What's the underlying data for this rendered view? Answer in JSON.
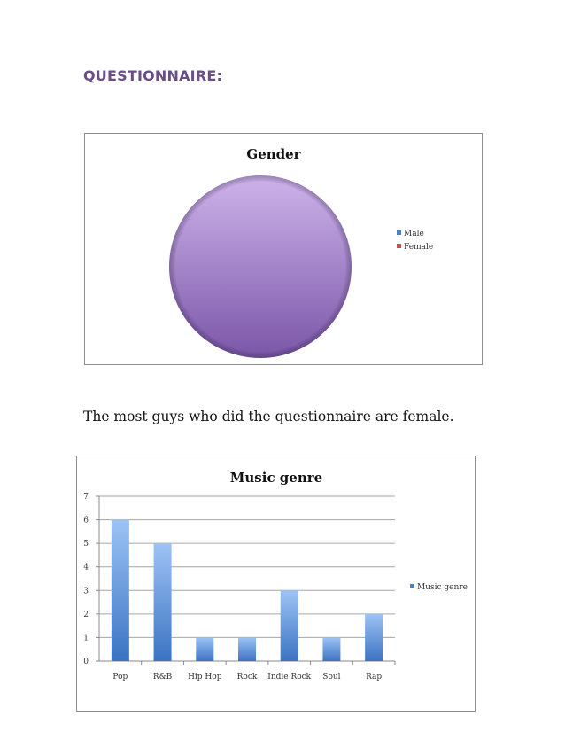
{
  "heading": "QUESTIONNAIRE:",
  "paragraph": "The most guys who did the questionnaire are female.",
  "chart_data": [
    {
      "type": "pie",
      "title": "Gender",
      "labels": [
        "Male",
        "Female"
      ],
      "values": [
        0,
        1
      ],
      "legend_position": "right",
      "colors": {
        "Male": "#4f81bd",
        "Female": "#c0504d",
        "slice": "#8064a2"
      }
    },
    {
      "type": "bar",
      "title": "Music genre",
      "categories": [
        "Pop",
        "R&B",
        "Hip Hop",
        "Rock",
        "Indie Rock",
        "Soul",
        "Rap"
      ],
      "series": [
        {
          "name": "Music genre",
          "values": [
            6,
            5,
            1,
            1,
            3,
            1,
            2
          ]
        }
      ],
      "ylim": [
        0,
        7
      ],
      "yticks": [
        0,
        1,
        2,
        3,
        4,
        5,
        6,
        7
      ],
      "grid": true,
      "legend_position": "right",
      "colors": {
        "bar": "#4f81bd"
      }
    }
  ]
}
